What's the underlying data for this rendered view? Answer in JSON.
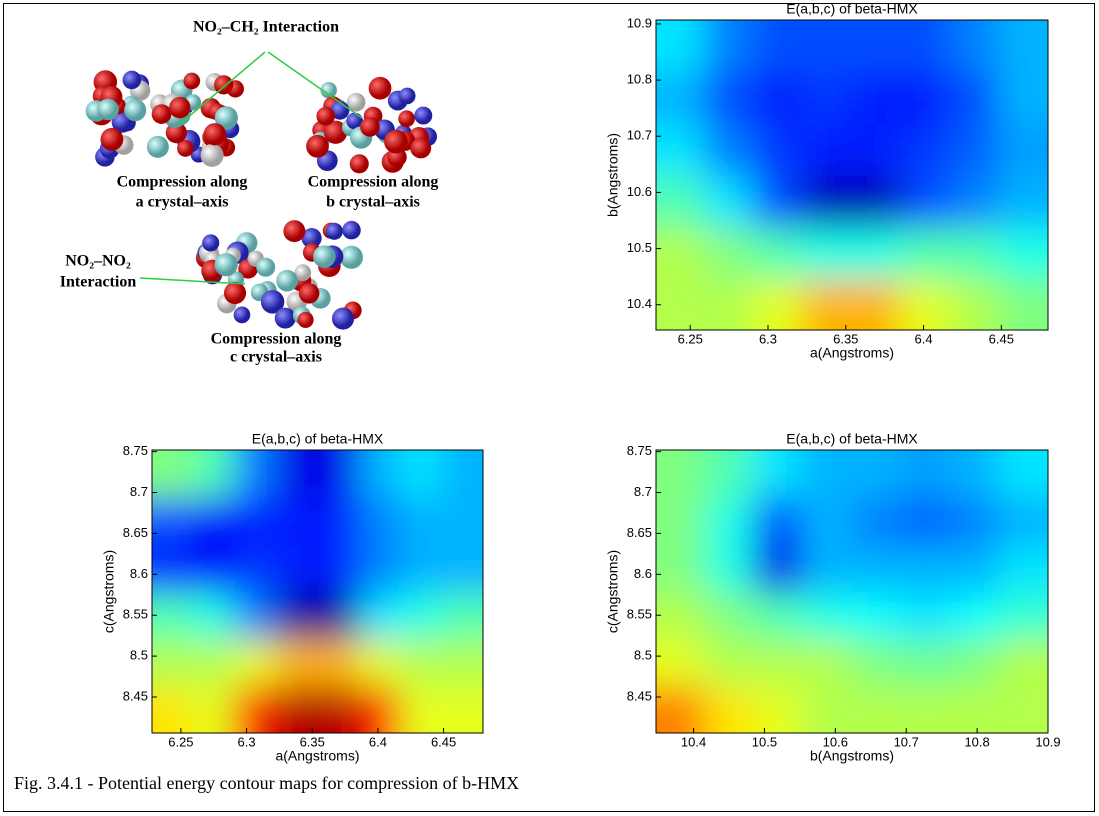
{
  "chart_data": [
    {
      "type": "contour",
      "title": "E(a,b,c) of beta-HMX",
      "x_label": "a(Angstroms)",
      "y_label": "b(Angstroms)",
      "xlim": [
        6.228,
        6.48
      ],
      "ylim": [
        10.355,
        10.907
      ],
      "xticks": [
        6.25,
        6.3,
        6.35,
        6.4,
        6.45
      ],
      "yticks": [
        10.4,
        10.5,
        10.6,
        10.7,
        10.8,
        10.9
      ],
      "colormap": "jet",
      "z": [
        [
          0.55,
          0.55,
          0.6,
          0.7,
          0.7,
          0.6,
          0.55,
          0.5
        ],
        [
          0.55,
          0.5,
          0.45,
          0.4,
          0.4,
          0.45,
          0.45,
          0.4
        ],
        [
          0.45,
          0.35,
          0.2,
          0.05,
          0.05,
          0.2,
          0.25,
          0.3
        ],
        [
          0.35,
          0.25,
          0.18,
          0.15,
          0.15,
          0.18,
          0.22,
          0.28
        ],
        [
          0.3,
          0.2,
          0.15,
          0.18,
          0.15,
          0.15,
          0.2,
          0.3
        ],
        [
          0.35,
          0.25,
          0.2,
          0.2,
          0.2,
          0.2,
          0.25,
          0.3
        ]
      ]
    },
    {
      "type": "contour",
      "title": "E(a,b,c) of beta-HMX",
      "x_label": "a(Angstroms)",
      "y_label": "c(Angstroms)",
      "xlim": [
        6.228,
        6.48
      ],
      "ylim": [
        8.406,
        8.752
      ],
      "xticks": [
        6.25,
        6.3,
        6.35,
        6.4,
        6.45
      ],
      "yticks": [
        8.45,
        8.5,
        8.55,
        8.6,
        8.65,
        8.7,
        8.75
      ],
      "colormap": "jet",
      "z": [
        [
          0.65,
          0.6,
          0.85,
          0.95,
          0.95,
          0.85,
          0.6,
          0.6
        ],
        [
          0.55,
          0.55,
          0.6,
          0.7,
          0.7,
          0.6,
          0.55,
          0.55
        ],
        [
          0.45,
          0.4,
          0.25,
          0.02,
          0.02,
          0.35,
          0.4,
          0.45
        ],
        [
          0.15,
          0.12,
          0.18,
          0.15,
          0.15,
          0.25,
          0.3,
          0.3
        ],
        [
          0.2,
          0.12,
          0.15,
          0.15,
          0.15,
          0.25,
          0.3,
          0.3
        ],
        [
          0.5,
          0.45,
          0.25,
          0.1,
          0.1,
          0.3,
          0.35,
          0.3
        ]
      ]
    },
    {
      "type": "contour",
      "title": "E(a,b,c) of beta-HMX",
      "x_label": "b(Angstroms)",
      "y_label": "c(Angstroms)",
      "xlim": [
        10.347,
        10.9
      ],
      "ylim": [
        8.406,
        8.752
      ],
      "xticks": [
        10.4,
        10.5,
        10.6,
        10.7,
        10.8,
        10.9
      ],
      "yticks": [
        8.45,
        8.5,
        8.55,
        8.6,
        8.65,
        8.7,
        8.75
      ],
      "colormap": "jet",
      "z": [
        [
          0.75,
          0.65,
          0.6,
          0.55,
          0.55,
          0.55,
          0.55,
          0.55
        ],
        [
          0.6,
          0.55,
          0.55,
          0.55,
          0.5,
          0.48,
          0.5,
          0.55
        ],
        [
          0.55,
          0.5,
          0.45,
          0.4,
          0.38,
          0.35,
          0.38,
          0.42
        ],
        [
          0.5,
          0.4,
          0.1,
          0.3,
          0.3,
          0.3,
          0.3,
          0.35
        ],
        [
          0.5,
          0.4,
          0.2,
          0.3,
          0.25,
          0.22,
          0.25,
          0.3
        ],
        [
          0.5,
          0.45,
          0.35,
          0.3,
          0.3,
          0.28,
          0.3,
          0.35
        ]
      ]
    }
  ],
  "illustration": {
    "top_label": "NO₂–CH₂ Interaction",
    "left_label": [
      "NO₂–NO₂",
      "Interaction"
    ],
    "captions": [
      [
        "Compression along",
        "a crystal–axis"
      ],
      [
        "Compression along",
        "b crystal–axis"
      ],
      [
        "Compression along",
        "c crystal–axis"
      ]
    ]
  },
  "caption": "Fig. 3.4.1 - Potential energy contour maps for compression of b-HMX"
}
